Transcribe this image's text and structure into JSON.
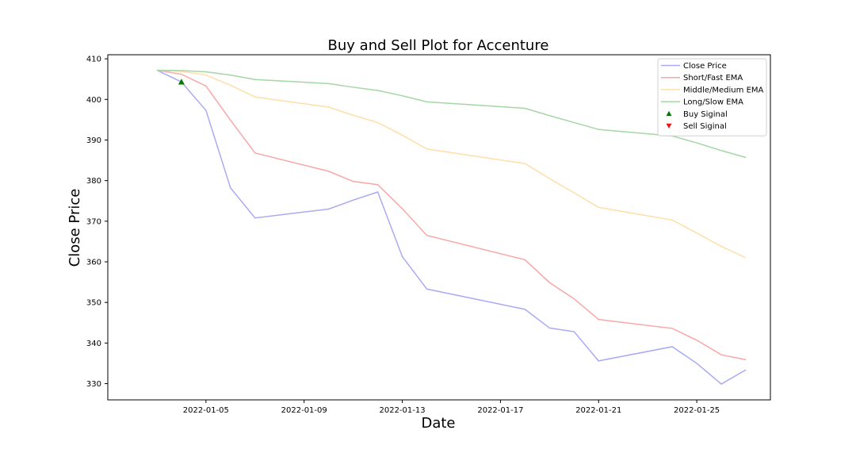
{
  "chart_data": {
    "type": "line",
    "title": "Buy and Sell Plot for Accenture",
    "xlabel": "Date",
    "ylabel": "Close Price",
    "x": [
      "2022-01-03",
      "2022-01-04",
      "2022-01-05",
      "2022-01-06",
      "2022-01-07",
      "2022-01-10",
      "2022-01-11",
      "2022-01-12",
      "2022-01-13",
      "2022-01-14",
      "2022-01-18",
      "2022-01-19",
      "2022-01-20",
      "2022-01-21",
      "2022-01-24",
      "2022-01-25",
      "2022-01-26",
      "2022-01-27"
    ],
    "x_ticks": [
      "2022-01-05",
      "2022-01-09",
      "2022-01-13",
      "2022-01-17",
      "2022-01-21",
      "2022-01-25"
    ],
    "xlim": [
      "2022-01-01",
      "2022-01-28"
    ],
    "ylim": [
      326,
      411
    ],
    "y_ticks": [
      330,
      340,
      350,
      360,
      370,
      380,
      390,
      400,
      410
    ],
    "grid": false,
    "legend_position": "top-right",
    "series": [
      {
        "name": "Close Price",
        "color": "#aaaaf5",
        "values": [
          407.2,
          404.3,
          397.3,
          378.2,
          370.8,
          373.0,
          375.2,
          377.2,
          361.3,
          353.3,
          348.3,
          343.7,
          342.8,
          335.6,
          339.1,
          335.0,
          329.9,
          333.4
        ]
      },
      {
        "name": "Short/Fast EMA",
        "color": "#f8a7a7",
        "values": [
          407.2,
          406.2,
          403.3,
          394.9,
          386.8,
          382.3,
          379.8,
          379.0,
          373.1,
          366.5,
          360.5,
          354.9,
          350.9,
          345.8,
          343.6,
          340.7,
          337.1,
          335.9
        ]
      },
      {
        "name": "Middle/Medium EMA",
        "color": "#fedfa8",
        "values": [
          407.2,
          406.9,
          406.0,
          403.5,
          400.6,
          398.1,
          396.1,
          394.3,
          391.2,
          387.8,
          384.2,
          380.5,
          377.0,
          373.4,
          370.3,
          367.1,
          363.8,
          361.0
        ]
      },
      {
        "name": "Long/Slow EMA",
        "color": "#a5d6a5",
        "values": [
          407.2,
          407.1,
          406.8,
          406.0,
          404.9,
          403.9,
          403.0,
          402.2,
          400.9,
          399.4,
          397.8,
          396.0,
          394.3,
          392.6,
          391.0,
          389.3,
          387.4,
          385.7
        ]
      }
    ],
    "buy_signals": [
      {
        "date": "2022-01-04",
        "price": 404.3
      }
    ],
    "sell_signals": [],
    "legend": [
      {
        "label": "Close Price",
        "kind": "line",
        "color": "#aaaaf5"
      },
      {
        "label": "Short/Fast EMA",
        "kind": "line",
        "color": "#f8a7a7"
      },
      {
        "label": "Middle/Medium EMA",
        "kind": "line",
        "color": "#fedfa8"
      },
      {
        "label": "Long/Slow EMA",
        "kind": "line",
        "color": "#a5d6a5"
      },
      {
        "label": "Buy Siginal",
        "kind": "marker-up",
        "color": "#007a00"
      },
      {
        "label": "Sell Siginal",
        "kind": "marker-down",
        "color": "#e31a1c"
      }
    ]
  }
}
